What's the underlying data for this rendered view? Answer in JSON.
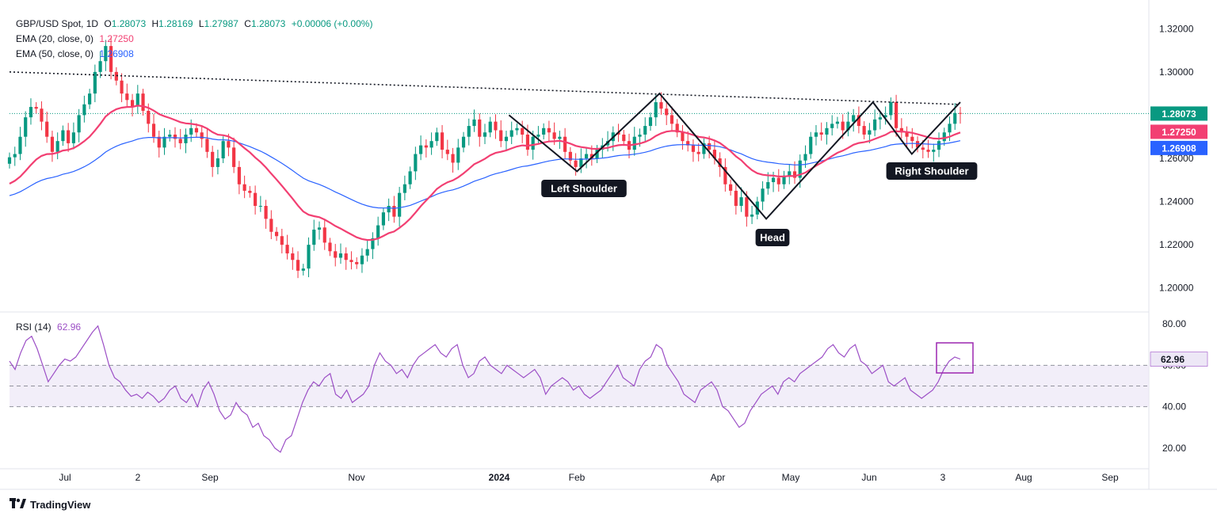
{
  "header": {
    "symbol": "GBP/USD Spot, 1D",
    "open_label": "O",
    "open": "1.28073",
    "high_label": "H",
    "high": "1.28169",
    "low_label": "L",
    "low": "1.27987",
    "close_label": "C",
    "close": "1.28073",
    "change": "+0.00006 (+0.00%)"
  },
  "indicators": {
    "ema20_label": "EMA (20, close, 0)",
    "ema20_value": "1.27250",
    "ema50_label": "EMA (50, close, 0)",
    "ema50_value": "1.26908",
    "rsi_label": "RSI (14)",
    "rsi_value": "62.96"
  },
  "footer": {
    "brand": "TradingView"
  },
  "colors": {
    "up": "#089981",
    "down": "#f23645",
    "ema20": "#f23f72",
    "ema50": "#2962ff",
    "rsi": "#9c4fc6",
    "box": "#9c27b0",
    "price_tag": "#089981"
  },
  "chart_data": [
    {
      "type": "candlestick",
      "title": "GBP/USD Spot, 1D",
      "ylim": [
        1.19,
        1.33
      ],
      "y_ticks": [
        "1.32000",
        "1.30000",
        "1.28000",
        "1.26000",
        "1.24000",
        "1.22000",
        "1.20000"
      ],
      "x_ticks": [
        "Jul",
        "2",
        "Sep",
        "Nov",
        "2024",
        "Feb",
        "Apr",
        "May",
        "Jun",
        "3",
        "Aug",
        "Sep"
      ],
      "price_tags": [
        "1.28073",
        "1.27250",
        "1.26908"
      ],
      "close_series": [
        1.2605,
        1.262,
        1.27,
        1.279,
        1.2838,
        1.283,
        1.277,
        1.27,
        1.263,
        1.268,
        1.273,
        1.267,
        1.272,
        1.28,
        1.285,
        1.29,
        1.3,
        1.305,
        1.312,
        1.3,
        1.296,
        1.29,
        1.287,
        1.284,
        1.29,
        1.282,
        1.276,
        1.27,
        1.265,
        1.27,
        1.271,
        1.269,
        1.267,
        1.271,
        1.274,
        1.272,
        1.269,
        1.263,
        1.256,
        1.26,
        1.268,
        1.265,
        1.256,
        1.248,
        1.245,
        1.244,
        1.238,
        1.238,
        1.232,
        1.226,
        1.224,
        1.22,
        1.216,
        1.213,
        1.208,
        1.209,
        1.22,
        1.227,
        1.228,
        1.221,
        1.217,
        1.214,
        1.216,
        1.213,
        1.212,
        1.211,
        1.215,
        1.218,
        1.223,
        1.229,
        1.235,
        1.238,
        1.233,
        1.244,
        1.248,
        1.254,
        1.262,
        1.266,
        1.265,
        1.268,
        1.272,
        1.264,
        1.262,
        1.258,
        1.265,
        1.27,
        1.275,
        1.278,
        1.27,
        1.272,
        1.277,
        1.273,
        1.268,
        1.27,
        1.273,
        1.274,
        1.271,
        1.264,
        1.27,
        1.271,
        1.274,
        1.272,
        1.269,
        1.27,
        1.263,
        1.259,
        1.256,
        1.26,
        1.262,
        1.26,
        1.264,
        1.266,
        1.268,
        1.272,
        1.271,
        1.268,
        1.264,
        1.27,
        1.271,
        1.275,
        1.279,
        1.286,
        1.283,
        1.28,
        1.276,
        1.272,
        1.268,
        1.266,
        1.263,
        1.262,
        1.267,
        1.264,
        1.26,
        1.256,
        1.248,
        1.245,
        1.238,
        1.242,
        1.233,
        1.234,
        1.24,
        1.246,
        1.249,
        1.251,
        1.248,
        1.252,
        1.254,
        1.251,
        1.259,
        1.262,
        1.27,
        1.272,
        1.271,
        1.274,
        1.276,
        1.277,
        1.273,
        1.277,
        1.28,
        1.275,
        1.271,
        1.273,
        1.278,
        1.279,
        1.28,
        1.286,
        1.274,
        1.272,
        1.27,
        1.268,
        1.265,
        1.264,
        1.263,
        1.264,
        1.268,
        1.272,
        1.276,
        1.281,
        1.2807
      ],
      "series": [
        {
          "name": "EMA (20, close, 0)",
          "last": 1.2725
        },
        {
          "name": "EMA (50, close, 0)",
          "last": 1.26908
        }
      ],
      "annotations": [
        "Left Shoulder",
        "Head",
        "Right Shoulder"
      ],
      "pattern_points": [
        1.28,
        1.254,
        1.29,
        1.232,
        1.286,
        1.262,
        1.286
      ],
      "trendline": [
        1.3,
        1.285
      ]
    },
    {
      "type": "line",
      "title": "RSI (14)",
      "ylim": [
        10,
        85
      ],
      "y_ticks": [
        "80.00",
        "60.00",
        "40.00",
        "20.00"
      ],
      "band": [
        40,
        60
      ],
      "midline": 50,
      "current": "62.96",
      "series": [
        {
          "name": "RSI (14)",
          "values": [
            62,
            58,
            66,
            72,
            74,
            68,
            60,
            52,
            56,
            60,
            63,
            62,
            64,
            68,
            72,
            76,
            79,
            70,
            60,
            54,
            52,
            48,
            45,
            46,
            44,
            47,
            45,
            42,
            44,
            48,
            50,
            44,
            42,
            46,
            40,
            48,
            52,
            46,
            38,
            34,
            36,
            42,
            38,
            36,
            30,
            32,
            26,
            24,
            20,
            18,
            24,
            26,
            34,
            42,
            48,
            52,
            50,
            54,
            56,
            46,
            44,
            48,
            42,
            44,
            46,
            50,
            60,
            66,
            62,
            60,
            56,
            58,
            54,
            60,
            64,
            66,
            68,
            70,
            66,
            64,
            68,
            70,
            60,
            54,
            56,
            62,
            64,
            60,
            58,
            56,
            60,
            58,
            56,
            54,
            56,
            58,
            54,
            46,
            50,
            52,
            54,
            52,
            48,
            50,
            46,
            44,
            46,
            48,
            52,
            56,
            60,
            54,
            52,
            50,
            58,
            62,
            64,
            70,
            68,
            60,
            56,
            52,
            46,
            44,
            42,
            48,
            50,
            52,
            48,
            40,
            38,
            34,
            30,
            32,
            38,
            42,
            46,
            48,
            50,
            46,
            52,
            54,
            52,
            56,
            58,
            60,
            62,
            64,
            68,
            70,
            66,
            64,
            68,
            70,
            62,
            60,
            56,
            58,
            60,
            52,
            50,
            52,
            54,
            48,
            46,
            44,
            46,
            48,
            52,
            58,
            62,
            64,
            63
          ]
        }
      ]
    }
  ]
}
